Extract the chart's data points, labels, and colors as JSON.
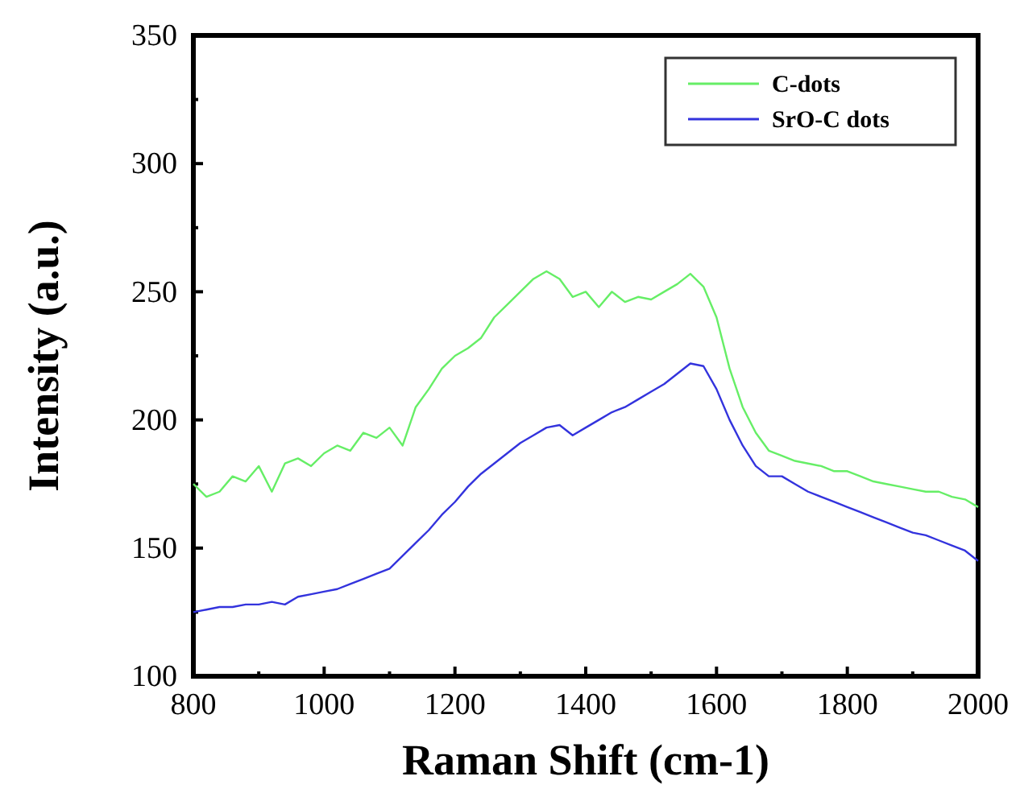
{
  "chart_data": {
    "type": "line",
    "xlabel": "Raman Shift (cm-1)",
    "ylabel": "Intensity (a.u.)",
    "x": [
      800,
      820,
      840,
      860,
      880,
      900,
      920,
      940,
      960,
      980,
      1000,
      1020,
      1040,
      1060,
      1080,
      1100,
      1120,
      1140,
      1160,
      1180,
      1200,
      1220,
      1240,
      1260,
      1280,
      1300,
      1320,
      1340,
      1360,
      1380,
      1400,
      1420,
      1440,
      1460,
      1480,
      1500,
      1520,
      1540,
      1560,
      1580,
      1600,
      1620,
      1640,
      1660,
      1680,
      1700,
      1720,
      1740,
      1760,
      1780,
      1800,
      1820,
      1840,
      1860,
      1880,
      1900,
      1920,
      1940,
      1960,
      1980,
      2000
    ],
    "series": [
      {
        "name": "C-dots",
        "color": "#66ee66",
        "values": [
          175,
          170,
          172,
          178,
          176,
          182,
          172,
          183,
          185,
          182,
          187,
          190,
          188,
          195,
          193,
          197,
          190,
          205,
          212,
          220,
          225,
          228,
          232,
          240,
          245,
          250,
          255,
          258,
          255,
          248,
          250,
          244,
          250,
          246,
          248,
          247,
          250,
          253,
          257,
          252,
          240,
          220,
          205,
          195,
          188,
          186,
          184,
          183,
          182,
          180,
          180,
          178,
          176,
          175,
          174,
          173,
          172,
          172,
          170,
          169,
          166
        ]
      },
      {
        "name": "SrO-C dots",
        "color": "#3333dd",
        "values": [
          125,
          126,
          127,
          127,
          128,
          128,
          129,
          128,
          131,
          132,
          133,
          134,
          136,
          138,
          140,
          142,
          147,
          152,
          157,
          163,
          168,
          174,
          179,
          183,
          187,
          191,
          194,
          197,
          198,
          194,
          197,
          200,
          203,
          205,
          208,
          211,
          214,
          218,
          222,
          221,
          212,
          200,
          190,
          182,
          178,
          178,
          175,
          172,
          170,
          168,
          166,
          164,
          162,
          160,
          158,
          156,
          155,
          153,
          151,
          149,
          145
        ]
      }
    ],
    "xlim": [
      800,
      2000
    ],
    "xticks": [
      800,
      {
        "value": 900,
        "label": null
      },
      1000,
      {
        "value": 1100,
        "label": null
      },
      1200,
      {
        "value": 1300,
        "label": null
      },
      1400,
      {
        "value": 1500,
        "label": null
      },
      1600,
      {
        "value": 1700,
        "label": null
      },
      1800,
      {
        "value": 1900,
        "label": null
      },
      2000
    ],
    "ylim": [
      100,
      350
    ],
    "yticks": [
      100,
      {
        "value": 125,
        "label": null
      },
      150,
      {
        "value": 175,
        "label": null
      },
      200,
      {
        "value": 225,
        "label": null
      },
      250,
      {
        "value": 275,
        "label": null
      },
      300,
      {
        "value": 325,
        "label": null
      },
      350
    ],
    "legend": "top right",
    "grid": false,
    "marker": "none",
    "line_style": "solid"
  }
}
